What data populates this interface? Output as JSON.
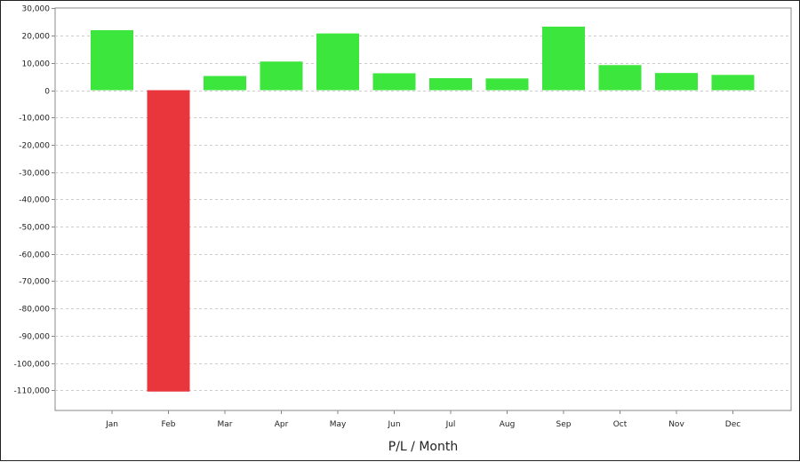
{
  "chart_data": {
    "type": "bar",
    "title": "",
    "xlabel": "P/L / Month",
    "ylabel": "",
    "categories": [
      "Jan",
      "Feb",
      "Mar",
      "Apr",
      "May",
      "Jun",
      "Jul",
      "Aug",
      "Sep",
      "Oct",
      "Nov",
      "Dec"
    ],
    "values": [
      22000,
      -110500,
      5200,
      10500,
      20800,
      6200,
      4400,
      4300,
      23300,
      9200,
      6300,
      5600
    ],
    "ylim": [
      -117000,
      30000
    ],
    "yticks": [
      30000,
      20000,
      10000,
      0,
      -10000,
      -20000,
      -30000,
      -40000,
      -50000,
      -60000,
      -70000,
      -80000,
      -90000,
      -100000,
      -110000
    ],
    "ytick_labels": [
      "30,000",
      "20,000",
      "10,000",
      "0",
      "-10,000",
      "-20,000",
      "-30,000",
      "-40,000",
      "-50,000",
      "-60,000",
      "-70,000",
      "-80,000",
      "-90,000",
      "-100,000",
      "-110,000"
    ],
    "grid": true,
    "legend": "none",
    "colors": {
      "positive": "#3de63d",
      "negative": "#e8363c",
      "grid": "#cccccc",
      "axis": "#888888"
    }
  }
}
